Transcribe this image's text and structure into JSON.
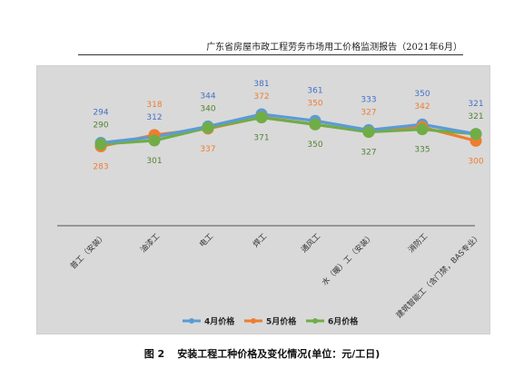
{
  "header": {
    "text": "广东省房屋市政工程劳务市场用工价格监测报告（2021年6月）"
  },
  "caption": {
    "number": "图 2",
    "title": "安装工程工种价格及变化情况(单位：元/工日)"
  },
  "colors": {
    "panel_bg": "#d9d9d9",
    "may_label": "#ed7d31"
  },
  "chart_data": {
    "type": "line",
    "title": "",
    "xlabel": "",
    "ylabel": "",
    "categories": [
      "普工（安装）",
      "油漆工",
      "电工",
      "焊工",
      "通风工",
      "水（暖）工（安装）",
      "消防工",
      "建筑智能工（含门禁，BAS专业）"
    ],
    "series": [
      {
        "name": "4月价格",
        "color": "#5b9bd5",
        "values": [
          294,
          312,
          344,
          381,
          361,
          333,
          350,
          321
        ]
      },
      {
        "name": "5月价格",
        "color": "#ed7d31",
        "values": [
          283,
          318,
          337,
          372,
          350,
          327,
          342,
          300
        ]
      },
      {
        "name": "6月价格",
        "color": "#70ad47",
        "values": [
          290,
          301,
          340,
          371,
          350,
          327,
          335,
          321
        ]
      }
    ],
    "grid": false,
    "legend": "bottom",
    "data_labels": true
  }
}
